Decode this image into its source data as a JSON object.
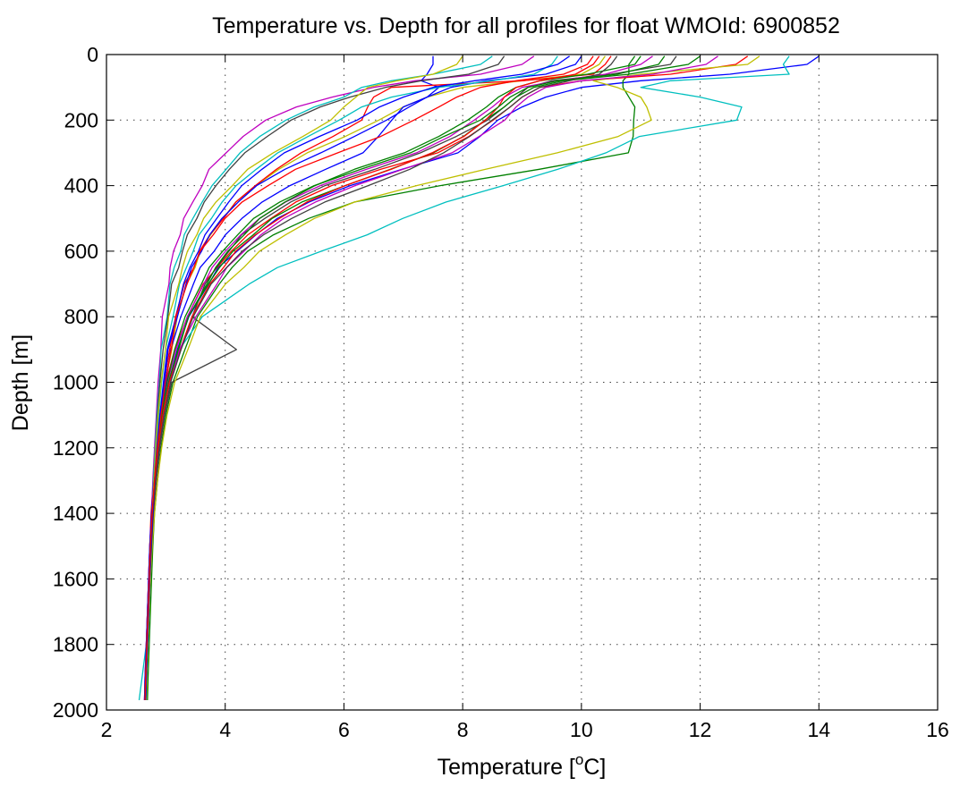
{
  "chart_data": {
    "type": "line",
    "title": "Temperature vs. Depth for all profiles for float WMOId: 6900852",
    "xlabel": "Temperature [",
    "xlabel_superscript": "o",
    "xlabel_suffix": "C]",
    "ylabel": "Depth [m]",
    "xlim": [
      2,
      16
    ],
    "ylim": [
      0,
      2000
    ],
    "y_reversed": true,
    "grid": true,
    "xticks": [
      2,
      4,
      6,
      8,
      10,
      12,
      14,
      16
    ],
    "yticks": [
      0,
      200,
      400,
      600,
      800,
      1000,
      1200,
      1400,
      1600,
      1800,
      2000
    ],
    "line_colors": [
      "#0000ff",
      "#008000",
      "#ff0000",
      "#00bfbf",
      "#bf00bf",
      "#bfbf00",
      "#404040"
    ],
    "series_count": 24,
    "depths": [
      5,
      30,
      60,
      80,
      100,
      130,
      160,
      200,
      250,
      300,
      350,
      400,
      450,
      500,
      550,
      600,
      650,
      700,
      800,
      900,
      1000,
      1100,
      1200,
      1300,
      1400,
      1500,
      1600,
      1700,
      1800,
      1900,
      1970
    ],
    "series": [
      {
        "values": [
          14.0,
          13.8,
          12.5,
          11.0,
          10.0,
          9.4,
          9.0,
          8.6,
          8.3,
          7.9,
          7.0,
          6.1,
          5.4,
          4.9,
          4.5,
          4.2,
          3.9,
          3.7,
          3.4,
          3.2,
          3.05,
          2.95,
          2.88,
          2.82,
          2.78,
          2.75,
          2.73,
          2.71,
          2.69,
          2.67,
          2.66
        ]
      },
      {
        "values": [
          10.9,
          10.8,
          10.8,
          10.7,
          10.7,
          10.8,
          10.9,
          10.9,
          10.85,
          10.8,
          9.3,
          7.6,
          6.2,
          5.4,
          4.8,
          4.4,
          4.1,
          3.9,
          3.55,
          3.3,
          3.12,
          3.0,
          2.92,
          2.86,
          2.81,
          2.78,
          2.76,
          2.74,
          2.72,
          2.7,
          2.69
        ]
      },
      {
        "values": [
          12.8,
          12.6,
          11.5,
          10.0,
          9.3,
          9.0,
          8.8,
          8.5,
          8.1,
          7.6,
          6.6,
          5.8,
          5.2,
          4.75,
          4.4,
          4.1,
          3.85,
          3.65,
          3.35,
          3.15,
          3.0,
          2.9,
          2.84,
          2.79,
          2.75,
          2.73,
          2.71,
          2.69,
          2.67,
          2.65,
          2.64
        ]
      },
      {
        "values": [
          13.5,
          13.4,
          13.5,
          11.5,
          11.0,
          12.0,
          12.7,
          12.6,
          11.0,
          10.4,
          9.6,
          8.7,
          7.7,
          7.0,
          6.4,
          5.6,
          4.9,
          4.4,
          3.6,
          3.25,
          3.05,
          2.95,
          2.87,
          2.82,
          2.78,
          2.75,
          2.72,
          2.7,
          2.67,
          2.6,
          2.55
        ]
      },
      {
        "values": [
          9.2,
          9.0,
          8.3,
          7.2,
          6.5,
          5.8,
          5.2,
          4.7,
          4.3,
          4.0,
          3.75,
          3.6,
          3.45,
          3.32,
          3.22,
          3.14,
          3.08,
          3.03,
          2.96,
          2.91,
          2.87,
          2.84,
          2.81,
          2.78,
          2.76,
          2.74,
          2.72,
          2.7,
          2.68,
          2.66,
          2.65
        ]
      },
      {
        "values": [
          10.4,
          10.3,
          10.0,
          9.0,
          8.0,
          7.4,
          7.0,
          6.6,
          6.0,
          5.4,
          4.9,
          4.5,
          4.2,
          3.95,
          3.75,
          3.6,
          3.47,
          3.36,
          3.2,
          3.08,
          2.99,
          2.92,
          2.86,
          2.81,
          2.77,
          2.74,
          2.72,
          2.7,
          2.68,
          2.66,
          2.65
        ]
      },
      {
        "values": [
          11.6,
          11.5,
          10.5,
          9.5,
          9.1,
          8.9,
          8.7,
          8.4,
          7.9,
          7.3,
          6.5,
          5.7,
          5.1,
          4.65,
          4.3,
          4.05,
          3.85,
          3.68,
          3.42,
          4.2,
          3.1,
          2.98,
          2.9,
          2.84,
          2.79,
          2.76,
          2.73,
          2.71,
          2.69,
          2.67,
          2.66
        ]
      },
      {
        "values": [
          7.5,
          7.5,
          7.4,
          7.3,
          7.6,
          7.4,
          7.0,
          6.8,
          6.6,
          6.3,
          5.7,
          5.1,
          4.6,
          4.3,
          4.0,
          3.8,
          3.6,
          3.45,
          3.25,
          3.1,
          3.0,
          2.93,
          2.87,
          2.82,
          2.78,
          2.75,
          2.72,
          2.7,
          2.68,
          2.66,
          2.65
        ]
      },
      {
        "values": [
          12.0,
          11.8,
          10.8,
          9.7,
          9.2,
          8.9,
          8.7,
          8.4,
          8.0,
          7.5,
          6.8,
          6.0,
          5.3,
          4.8,
          4.45,
          4.15,
          3.9,
          3.7,
          3.4,
          3.2,
          3.04,
          2.94,
          2.87,
          2.81,
          2.77,
          2.74,
          2.72,
          2.7,
          2.68,
          2.66,
          2.65
        ]
      },
      {
        "values": [
          10.5,
          10.4,
          10.2,
          9.0,
          6.8,
          6.5,
          6.4,
          6.3,
          5.8,
          5.3,
          4.85,
          4.5,
          4.2,
          3.95,
          3.75,
          3.58,
          3.45,
          3.33,
          3.16,
          3.05,
          2.97,
          2.9,
          2.85,
          2.8,
          2.76,
          2.73,
          2.71,
          2.69,
          2.67,
          2.66,
          2.65
        ]
      },
      {
        "values": [
          8.5,
          8.3,
          7.5,
          6.8,
          6.3,
          6.0,
          5.5,
          5.0,
          4.6,
          4.25,
          4.0,
          3.8,
          3.6,
          3.45,
          3.33,
          3.23,
          3.15,
          3.08,
          3.0,
          2.94,
          2.89,
          2.85,
          2.82,
          2.79,
          2.77,
          2.75,
          2.73,
          2.72,
          2.7,
          2.68,
          2.67
        ]
      },
      {
        "values": [
          11.2,
          11.0,
          10.4,
          9.6,
          9.0,
          8.7,
          8.5,
          8.2,
          7.8,
          7.2,
          6.4,
          5.6,
          5.0,
          4.6,
          4.25,
          4.0,
          3.8,
          3.62,
          3.37,
          3.18,
          3.03,
          2.93,
          2.86,
          2.8,
          2.76,
          2.73,
          2.71,
          2.69,
          2.67,
          2.65,
          2.64
        ]
      },
      {
        "values": [
          13.0,
          12.8,
          11.0,
          10.2,
          10.6,
          11.0,
          11.1,
          11.2,
          10.6,
          9.6,
          8.4,
          7.2,
          6.2,
          5.5,
          5.0,
          4.6,
          4.3,
          4.0,
          3.6,
          3.35,
          3.15,
          3.02,
          2.93,
          2.86,
          2.81,
          2.77,
          2.74,
          2.72,
          2.7,
          2.68,
          2.67
        ]
      },
      {
        "values": [
          8.7,
          8.6,
          8.1,
          7.3,
          6.7,
          6.1,
          5.6,
          5.1,
          4.7,
          4.35,
          4.05,
          3.85,
          3.66,
          3.5,
          3.38,
          3.28,
          3.2,
          3.12,
          3.02,
          2.95,
          2.9,
          2.86,
          2.83,
          2.8,
          2.77,
          2.75,
          2.73,
          2.71,
          2.69,
          2.67,
          2.66
        ]
      },
      {
        "values": [
          10.0,
          9.9,
          9.4,
          8.4,
          7.8,
          7.4,
          7.1,
          6.7,
          6.2,
          5.6,
          5.0,
          4.55,
          4.2,
          3.95,
          3.75,
          3.58,
          3.45,
          3.34,
          3.18,
          3.06,
          2.98,
          2.91,
          2.85,
          2.8,
          2.76,
          2.73,
          2.71,
          2.69,
          2.67,
          2.65,
          2.64
        ]
      },
      {
        "values": [
          11.0,
          10.9,
          10.1,
          9.3,
          8.9,
          8.6,
          8.4,
          8.1,
          7.6,
          7.0,
          6.2,
          5.5,
          5.0,
          4.6,
          4.3,
          4.05,
          3.85,
          3.67,
          3.4,
          3.2,
          3.05,
          2.95,
          2.87,
          2.81,
          2.77,
          2.74,
          2.72,
          2.7,
          2.68,
          2.66,
          2.65
        ]
      },
      {
        "values": [
          10.3,
          10.2,
          9.9,
          9.3,
          8.9,
          8.7,
          8.6,
          8.4,
          8.0,
          7.5,
          6.8,
          6.0,
          5.4,
          4.9,
          4.5,
          4.2,
          3.95,
          3.75,
          3.45,
          3.22,
          3.06,
          2.95,
          2.87,
          2.81,
          2.77,
          2.74,
          2.72,
          2.7,
          2.68,
          2.66,
          2.65
        ]
      },
      {
        "values": [
          9.6,
          9.5,
          9.2,
          8.5,
          7.6,
          6.8,
          6.3,
          5.9,
          5.4,
          4.9,
          4.5,
          4.2,
          3.95,
          3.75,
          3.58,
          3.45,
          3.34,
          3.25,
          3.1,
          3.0,
          2.93,
          2.88,
          2.84,
          2.8,
          2.77,
          2.75,
          2.73,
          2.71,
          2.69,
          2.67,
          2.66
        ]
      },
      {
        "values": [
          12.3,
          12.1,
          11.2,
          10.0,
          9.4,
          9.1,
          8.9,
          8.7,
          8.3,
          7.8,
          7.0,
          6.2,
          5.5,
          5.0,
          4.6,
          4.3,
          4.05,
          3.85,
          3.5,
          3.25,
          3.08,
          2.97,
          2.89,
          2.83,
          2.78,
          2.75,
          2.72,
          2.7,
          2.68,
          2.66,
          2.65
        ]
      },
      {
        "values": [
          8.0,
          7.9,
          7.5,
          6.9,
          6.4,
          6.2,
          6.0,
          5.8,
          5.3,
          4.8,
          4.4,
          4.1,
          3.85,
          3.65,
          3.5,
          3.38,
          3.28,
          3.2,
          3.07,
          2.98,
          2.92,
          2.87,
          2.83,
          2.8,
          2.77,
          2.75,
          2.73,
          2.71,
          2.69,
          2.67,
          2.66
        ]
      },
      {
        "values": [
          10.6,
          10.5,
          10.3,
          9.8,
          9.3,
          9.0,
          8.8,
          8.5,
          8.1,
          7.7,
          7.1,
          6.4,
          5.7,
          5.1,
          4.65,
          4.3,
          4.0,
          3.78,
          3.46,
          3.24,
          3.08,
          2.97,
          2.89,
          2.83,
          2.79,
          2.76,
          2.73,
          2.71,
          2.69,
          2.67,
          2.66
        ]
      },
      {
        "values": [
          9.8,
          9.6,
          9.0,
          8.2,
          7.5,
          7.0,
          6.6,
          6.2,
          5.6,
          5.0,
          4.6,
          4.3,
          4.05,
          3.85,
          3.68,
          3.53,
          3.41,
          3.31,
          3.15,
          3.04,
          2.96,
          2.9,
          2.85,
          2.81,
          2.78,
          2.75,
          2.73,
          2.71,
          2.69,
          2.67,
          2.66
        ]
      },
      {
        "values": [
          11.4,
          11.3,
          10.6,
          9.6,
          9.1,
          8.8,
          8.6,
          8.3,
          7.7,
          7.1,
          6.3,
          5.5,
          4.9,
          4.5,
          4.2,
          3.95,
          3.75,
          3.58,
          3.33,
          3.16,
          3.02,
          2.93,
          2.86,
          2.81,
          2.77,
          2.74,
          2.72,
          2.7,
          2.68,
          2.66,
          2.65
        ]
      },
      {
        "values": [
          10.2,
          10.1,
          9.7,
          8.9,
          8.3,
          7.9,
          7.6,
          7.2,
          6.6,
          5.9,
          5.2,
          4.7,
          4.3,
          4.0,
          3.78,
          3.6,
          3.46,
          3.35,
          3.19,
          3.07,
          2.99,
          2.92,
          2.86,
          2.81,
          2.77,
          2.74,
          2.72,
          2.7,
          2.68,
          2.66,
          2.65
        ]
      }
    ]
  }
}
